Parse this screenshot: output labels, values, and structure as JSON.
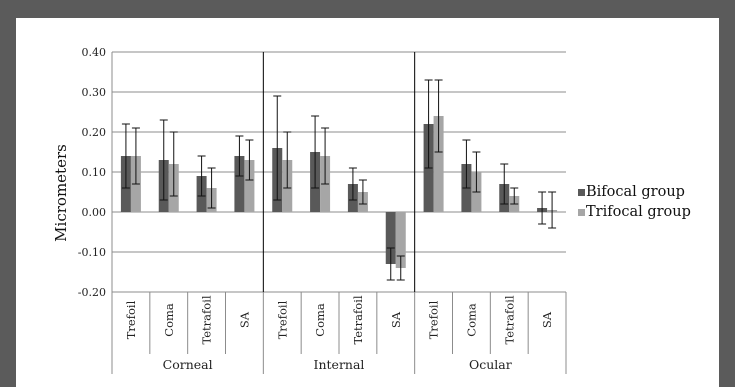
{
  "chart_data": {
    "type": "bar",
    "title": "",
    "ylabel": "Micrometers",
    "ylim": [
      -0.2,
      0.4
    ],
    "yticks": [
      "0.40",
      "0.30",
      "0.20",
      "0.10",
      "0.00",
      "-0.10",
      "-0.20"
    ],
    "grid": true,
    "legend_position": "right",
    "groups": [
      {
        "name": "Corneal",
        "categories": [
          "Trefoil",
          "Coma",
          "Tetrafoil",
          "SA"
        ]
      },
      {
        "name": "Internal",
        "categories": [
          "Trefoil",
          "Coma",
          "Tetrafoil",
          "SA"
        ]
      },
      {
        "name": "Ocular",
        "categories": [
          "Trefoil",
          "Coma",
          "Tetrafoil",
          "SA"
        ]
      }
    ],
    "series": [
      {
        "name": "Bifocal group",
        "color": "#595959",
        "values": [
          0.14,
          0.13,
          0.09,
          0.14,
          0.16,
          0.15,
          0.07,
          -0.13,
          0.22,
          0.12,
          0.07,
          0.01
        ],
        "error": [
          0.08,
          0.1,
          0.05,
          0.05,
          0.13,
          0.09,
          0.04,
          0.04,
          0.11,
          0.06,
          0.05,
          0.04
        ]
      },
      {
        "name": "Trifocal group",
        "color": "#a6a6a6",
        "values": [
          0.14,
          0.12,
          0.06,
          0.13,
          0.13,
          0.14,
          0.05,
          -0.14,
          0.24,
          0.1,
          0.04,
          0.005
        ],
        "error": [
          0.07,
          0.08,
          0.05,
          0.05,
          0.07,
          0.07,
          0.03,
          0.03,
          0.09,
          0.05,
          0.02,
          0.045
        ]
      }
    ]
  }
}
